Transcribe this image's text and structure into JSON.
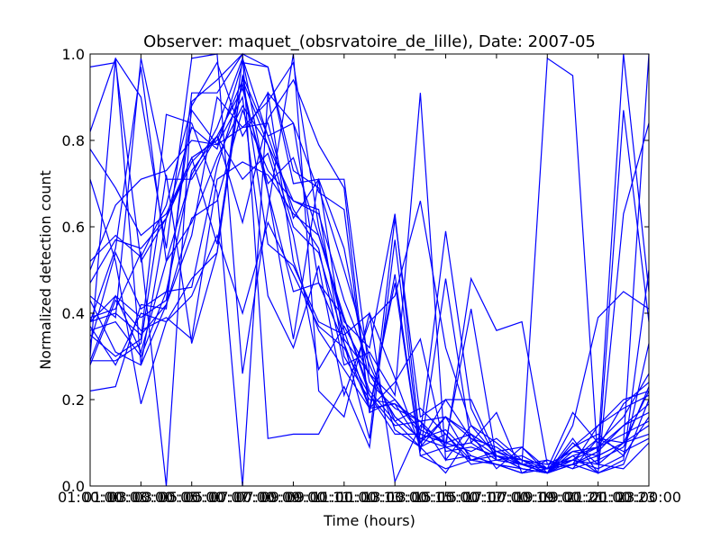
{
  "chart_data": {
    "type": "line",
    "title": "Observer: maquet_(obsrvatoire_de_lille), Date: 2007-05",
    "xlabel": "Time (hours)",
    "ylabel": "Normalized detection count",
    "xlim": [
      1,
      23
    ],
    "ylim": [
      0,
      1
    ],
    "grid": false,
    "legend": "none",
    "line_color": "#0000ff",
    "x_ticks": [
      {
        "value": 1,
        "label": "01:00:00"
      },
      {
        "value": 3,
        "label": "03:00:00"
      },
      {
        "value": 5,
        "label": "05:00:00"
      },
      {
        "value": 7,
        "label": "07:00:00"
      },
      {
        "value": 9,
        "label": "09:00:00"
      },
      {
        "value": 11,
        "label": "11:00:00"
      },
      {
        "value": 13,
        "label": "13:00:00"
      },
      {
        "value": 15,
        "label": "15:00:00"
      },
      {
        "value": 17,
        "label": "17:00:00"
      },
      {
        "value": 19,
        "label": "19:00:00"
      },
      {
        "value": 21,
        "label": "21:00:00"
      },
      {
        "value": 23,
        "label": "23:00:00"
      }
    ],
    "x_overlap_labels": [
      "01:00:03",
      "03:00:05",
      "05:00:07",
      "07:00:09",
      "09:00:11",
      "11:00:13",
      "13:00:15",
      "15:00:17",
      "17:00:19",
      "19:00:21",
      "21:00:23"
    ],
    "y_ticks": [
      {
        "value": 0.0,
        "label": "0.0"
      },
      {
        "value": 0.2,
        "label": "0.2"
      },
      {
        "value": 0.4,
        "label": "0.4"
      },
      {
        "value": 0.6,
        "label": "0.6"
      },
      {
        "value": 0.8,
        "label": "0.8"
      },
      {
        "value": 1.0,
        "label": "1.0"
      }
    ],
    "x": [
      1,
      2,
      3,
      4,
      5,
      6,
      7,
      8,
      9,
      10,
      11,
      12,
      13,
      14,
      15,
      16,
      17,
      18,
      19,
      20,
      21,
      22,
      23
    ],
    "series": [
      {
        "values": [
          0.29,
          0.44,
          0.31,
          0.52,
          0.61,
          0.76,
          0.88,
          0.79,
          0.6,
          0.54,
          0.34,
          0.26,
          0.2,
          0.13,
          0.1,
          0.12,
          0.08,
          0.06,
          0.04,
          0.07,
          0.09,
          0.12,
          0.15
        ]
      },
      {
        "values": [
          0.36,
          0.38,
          0.3,
          0.45,
          0.73,
          0.81,
          0.92,
          0.7,
          0.76,
          0.58,
          0.39,
          0.22,
          0.15,
          0.18,
          0.12,
          0.06,
          0.05,
          0.04,
          0.03,
          0.05,
          0.08,
          0.14,
          0.19
        ]
      },
      {
        "values": [
          0.38,
          0.4,
          0.35,
          0.42,
          0.58,
          0.9,
          0.83,
          0.84,
          0.62,
          0.71,
          0.55,
          0.24,
          0.18,
          0.15,
          0.09,
          0.1,
          0.06,
          0.05,
          0.04,
          0.06,
          0.11,
          0.1,
          0.22
        ]
      },
      {
        "values": [
          0.22,
          0.23,
          0.42,
          0.41,
          0.91,
          0.91,
          1.0,
          0.97,
          0.73,
          0.69,
          0.5,
          0.3,
          0.13,
          0.09,
          0.16,
          0.06,
          0.08,
          0.09,
          0.04,
          0.17,
          0.1,
          0.16,
          0.26
        ]
      },
      {
        "values": [
          0.29,
          0.29,
          0.33,
          0.72,
          0.33,
          0.54,
          0.99,
          0.68,
          0.34,
          0.71,
          0.71,
          0.26,
          0.16,
          0.11,
          0.13,
          0.07,
          0.05,
          0.04,
          0.03,
          0.05,
          0.14,
          0.18,
          0.21
        ]
      },
      {
        "values": [
          0.3,
          0.99,
          0.28,
          0.42,
          0.62,
          0.66,
          0.87,
          0.73,
          0.66,
          0.64,
          0.3,
          0.2,
          0.19,
          0.1,
          0.2,
          0.11,
          0.07,
          0.05,
          0.03,
          0.09,
          0.14,
          0.2,
          0.22
        ]
      },
      {
        "values": [
          0.33,
          0.54,
          0.41,
          0.45,
          0.46,
          0.74,
          0.93,
          0.68,
          0.45,
          0.47,
          0.39,
          0.21,
          0.14,
          0.15,
          0.16,
          0.11,
          0.09,
          0.05,
          0.06,
          0.04,
          0.11,
          0.08,
          0.11
        ]
      },
      {
        "values": [
          0.47,
          0.57,
          0.55,
          0.62,
          0.75,
          0.81,
          0.71,
          0.77,
          0.58,
          0.27,
          0.37,
          0.26,
          0.16,
          0.11,
          0.09,
          0.06,
          0.07,
          0.06,
          0.03,
          0.08,
          0.09,
          0.19,
          0.24
        ]
      },
      {
        "values": [
          0.52,
          0.58,
          0.53,
          0.65,
          0.88,
          0.98,
          0.81,
          0.91,
          0.52,
          0.36,
          0.27,
          0.18,
          0.19,
          0.15,
          0.06,
          0.07,
          0.05,
          0.03,
          0.04,
          0.06,
          0.09,
          0.14,
          0.17
        ]
      },
      {
        "values": [
          0.37,
          0.28,
          0.4,
          0.38,
          0.44,
          0.58,
          0.4,
          0.61,
          0.49,
          0.37,
          0.32,
          0.21,
          0.12,
          0.12,
          0.1,
          0.08,
          0.11,
          0.06,
          0.05,
          0.08,
          0.07,
          0.1,
          0.12
        ]
      },
      {
        "values": [
          0.97,
          0.98,
          0.52,
          0.62,
          0.76,
          0.8,
          0.94,
          0.79,
          0.66,
          0.63,
          0.43,
          0.28,
          0.15,
          0.09,
          0.12,
          0.05,
          0.06,
          0.07,
          0.04,
          0.09,
          0.12,
          0.07,
          0.33
        ]
      },
      {
        "values": [
          0.82,
          0.99,
          0.9,
          0.55,
          0.99,
          1.0,
          0.26,
          0.64,
          1.0,
          0.22,
          0.16,
          0.4,
          0.25,
          0.09,
          0.03,
          0.12,
          0.08,
          0.05,
          0.99,
          0.95,
          0.05,
          0.04,
          0.1
        ]
      },
      {
        "values": [
          0.71,
          0.52,
          0.19,
          0.38,
          0.48,
          0.54,
          0.95,
          0.81,
          0.64,
          0.55,
          0.28,
          0.31,
          0.21,
          0.91,
          0.06,
          0.14,
          0.07,
          0.04,
          0.03,
          0.06,
          0.05,
          0.87,
          0.38
        ]
      },
      {
        "values": [
          0.28,
          0.43,
          0.36,
          0.39,
          0.34,
          0.71,
          0.75,
          0.72,
          0.63,
          0.58,
          0.38,
          0.32,
          0.63,
          0.1,
          0.16,
          0.12,
          0.04,
          0.09,
          0.03,
          0.11,
          0.03,
          0.63,
          0.84
        ]
      },
      {
        "values": [
          0.5,
          0.65,
          0.71,
          0.73,
          0.8,
          0.79,
          0.83,
          0.89,
          0.98,
          0.6,
          0.36,
          0.18,
          0.24,
          0.34,
          0.08,
          0.09,
          0.07,
          0.05,
          0.03,
          0.05,
          0.08,
          1.0,
          0.45
        ]
      },
      {
        "values": [
          0.38,
          0.55,
          0.97,
          0.52,
          0.72,
          0.83,
          0.99,
          0.81,
          0.84,
          0.68,
          0.64,
          0.17,
          0.2,
          0.12,
          0.59,
          0.18,
          0.06,
          0.05,
          0.03,
          0.1,
          0.05,
          0.1,
          1.0
        ]
      },
      {
        "values": [
          0.78,
          0.69,
          0.58,
          0.63,
          0.76,
          0.56,
          0.95,
          0.56,
          0.51,
          0.38,
          0.35,
          0.4,
          0.01,
          0.14,
          0.1,
          0.41,
          0.06,
          0.05,
          0.03,
          0.07,
          0.03,
          0.06,
          0.5
        ]
      },
      {
        "values": [
          0.38,
          0.44,
          0.39,
          0.43,
          0.87,
          0.79,
          0.9,
          0.44,
          0.32,
          0.51,
          0.21,
          0.38,
          0.44,
          0.66,
          0.32,
          0.14,
          0.1,
          0.05,
          0.04,
          0.05,
          0.03,
          0.05,
          0.2
        ]
      },
      {
        "values": [
          0.44,
          0.39,
          0.99,
          0.71,
          0.71,
          0.81,
          0.61,
          0.85,
          0.94,
          0.79,
          0.69,
          0.17,
          0.49,
          0.07,
          0.09,
          0.48,
          0.36,
          0.38,
          0.05,
          0.06,
          0.04,
          0.07,
          0.16
        ]
      },
      {
        "values": [
          0.39,
          0.41,
          0.54,
          0.0,
          0.89,
          0.94,
          1.0,
          0.11,
          0.12,
          0.12,
          0.23,
          0.09,
          0.57,
          0.08,
          0.48,
          0.1,
          0.17,
          0.03,
          0.06,
          0.04,
          0.06,
          0.09,
          0.23
        ]
      },
      {
        "values": [
          0.35,
          0.3,
          0.34,
          0.86,
          0.84,
          0.68,
          0.0,
          0.91,
          0.84,
          0.47,
          0.33,
          0.11,
          0.62,
          0.16,
          0.2,
          0.2,
          0.07,
          0.04,
          0.03,
          0.14,
          0.39,
          0.45,
          0.41
        ]
      },
      {
        "values": [
          0.43,
          0.31,
          0.28,
          0.62,
          0.83,
          0.78,
          0.98,
          0.97,
          0.7,
          0.71,
          0.33,
          0.18,
          0.47,
          0.07,
          0.04,
          0.06,
          0.05,
          0.03,
          0.04,
          0.05,
          0.07,
          0.1,
          0.14
        ]
      }
    ]
  }
}
